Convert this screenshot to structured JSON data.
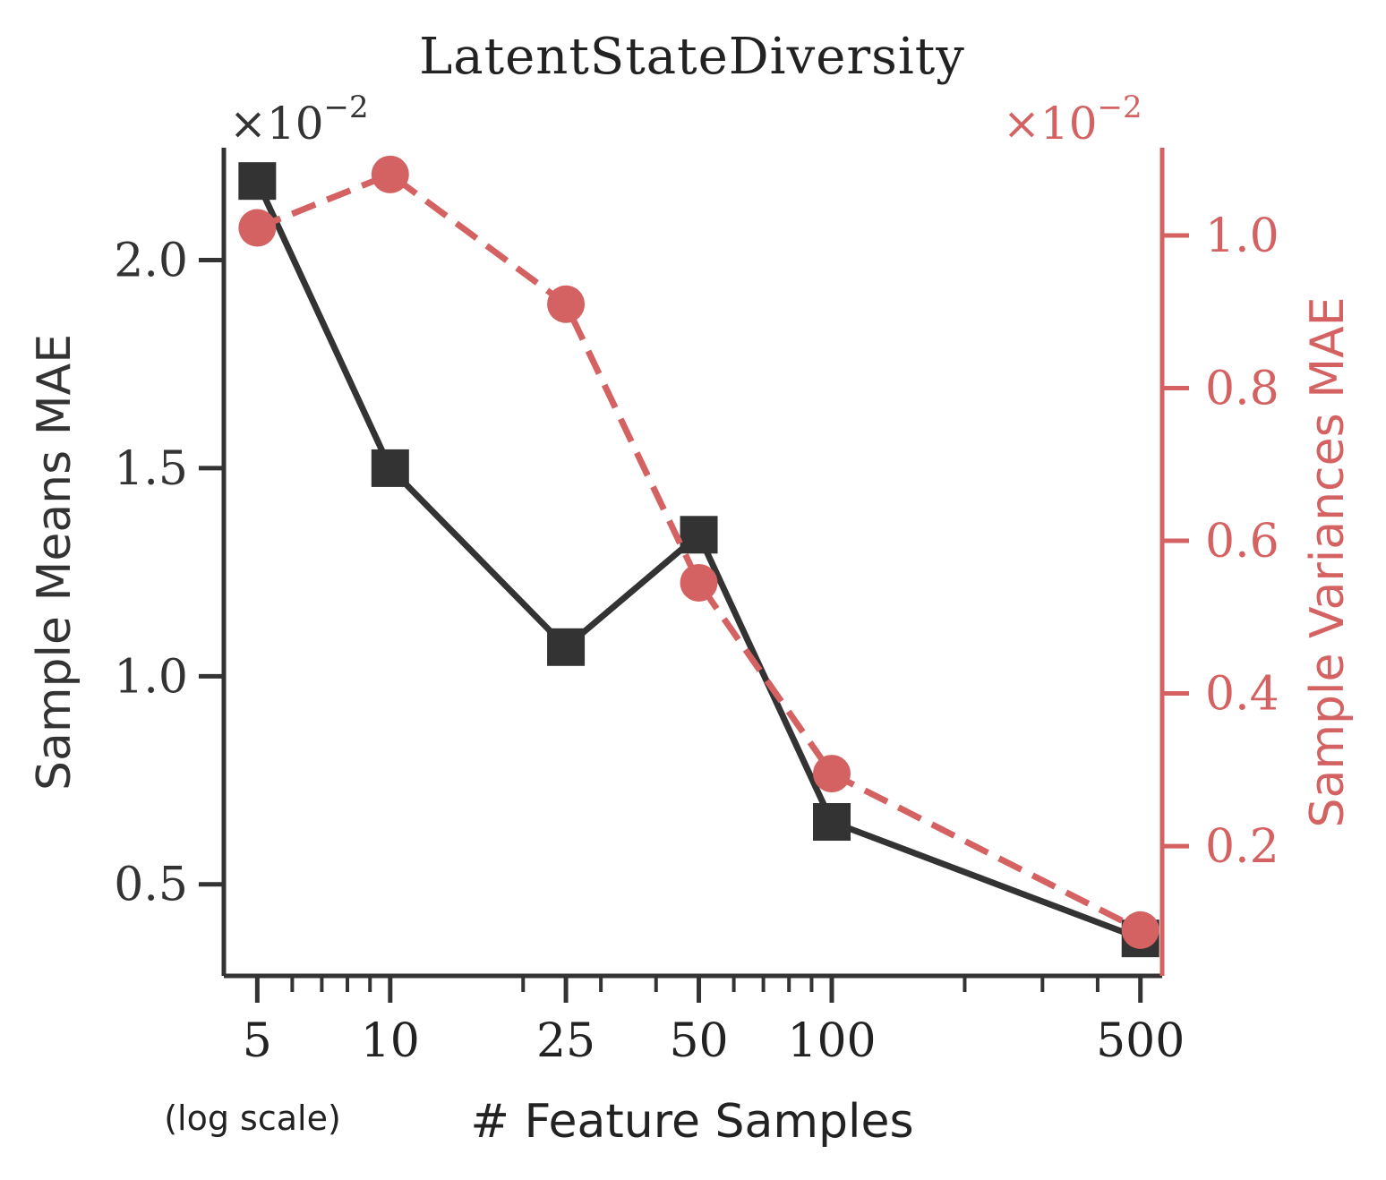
{
  "chart_data": {
    "type": "line",
    "title": "LatentStateDiversity",
    "xlabel": "# Feature Samples",
    "xlabel_note": "(log scale)",
    "x_scale": "log",
    "x": [
      5,
      10,
      25,
      50,
      100,
      500
    ],
    "x_tick_labels": [
      "5",
      "10",
      "25",
      "50",
      "100",
      "500"
    ],
    "xlim": [
      4.2,
      560
    ],
    "left_axis": {
      "label": "Sample Means MAE",
      "multiplier_label": "×10",
      "multiplier_exp": "−2",
      "ylim": [
        0.28,
        2.27
      ],
      "ticks": [
        0.5,
        1.0,
        1.5,
        2.0
      ],
      "tick_labels": [
        "0.5",
        "1.0",
        "1.5",
        "2.0"
      ],
      "color": "#333333"
    },
    "right_axis": {
      "label": "Sample Variances MAE",
      "multiplier_label": "×10",
      "multiplier_exp": "−2",
      "ylim": [
        0.03,
        1.115
      ],
      "ticks": [
        0.2,
        0.4,
        0.6,
        0.8,
        1.0
      ],
      "tick_labels": [
        "0.2",
        "0.4",
        "0.6",
        "0.8",
        "1.0"
      ],
      "color": "#d46262"
    },
    "series": [
      {
        "axis": "left",
        "values": [
          2.19,
          1.5,
          1.07,
          1.34,
          0.65,
          0.37
        ],
        "color": "#333333",
        "line": "solid",
        "marker": "square"
      },
      {
        "axis": "right",
        "values": [
          1.01,
          1.08,
          0.91,
          0.545,
          0.295,
          0.09
        ],
        "color": "#d46262",
        "line": "dashed",
        "marker": "circle"
      }
    ]
  }
}
